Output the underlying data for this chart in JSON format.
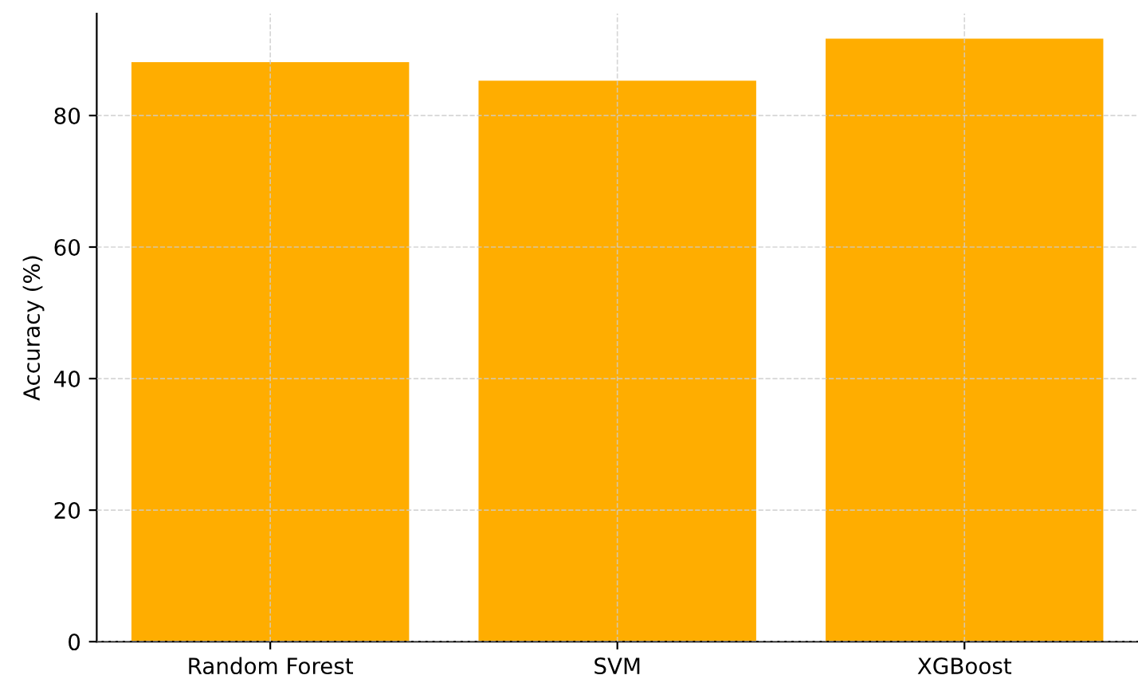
{
  "chart_data": {
    "type": "bar",
    "ylabel": "Accuracy (%)",
    "categories": [
      "Random Forest",
      "SVM",
      "XGBoost"
    ],
    "values": [
      88.1,
      85.3,
      91.7
    ],
    "color": "#ffad00",
    "ylim": [
      0,
      95.5
    ],
    "yticks": [
      0,
      20,
      40,
      60,
      80
    ],
    "grid": true
  }
}
